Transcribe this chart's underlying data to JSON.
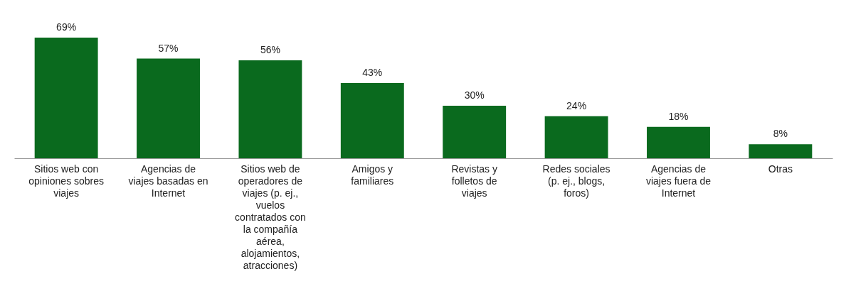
{
  "chart_data": {
    "type": "bar",
    "categories": [
      "Sitios web con opiniones sobres viajes",
      "Agencias de viajes basadas en Internet",
      "Sitios web de operadores de viajes (p. ej., vuelos contratados con la compañía aérea, alojamientos, atracciones)",
      "Amigos y familiares",
      "Revistas y folletos de viajes",
      "Redes sociales (p. ej., blogs, foros)",
      "Agencias de viajes fuera de Internet",
      "Otras"
    ],
    "values": [
      69,
      57,
      56,
      43,
      30,
      24,
      18,
      8
    ],
    "value_labels": [
      "69%",
      "57%",
      "56%",
      "43%",
      "30%",
      "24%",
      "18%",
      "8%"
    ],
    "color": "#0a6a1e"
  }
}
